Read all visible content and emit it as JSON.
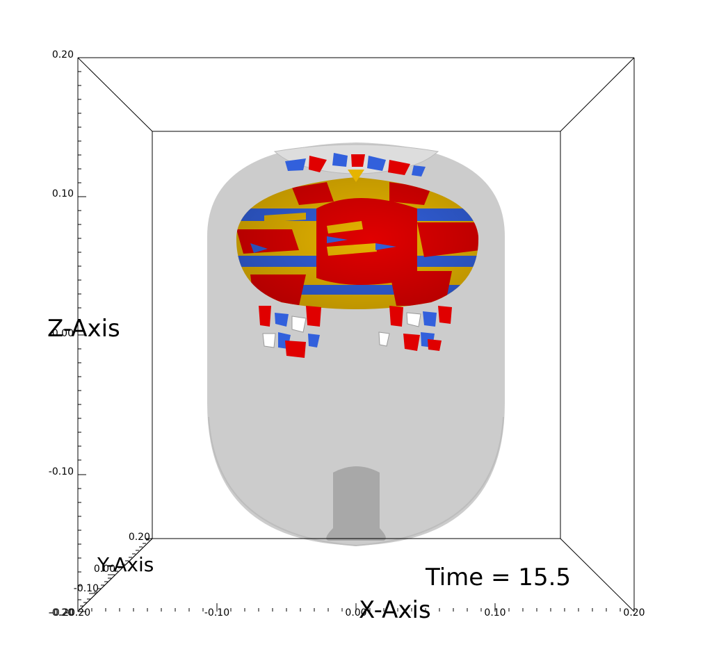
{
  "view": {
    "time_label": "Time = 15.5"
  },
  "axes": {
    "x": {
      "title": "X-Axis",
      "ticks": [
        "-0.20",
        "-0.10",
        "0.00",
        "0.10",
        "0.20"
      ]
    },
    "y": {
      "title": "Y-Axis",
      "ticks": [
        "0.20",
        "0.00",
        "-0.10",
        "-0.20"
      ]
    },
    "z": {
      "title": "Z-Axis",
      "ticks": [
        "0.20",
        "0.10",
        "0.00",
        "-0.10",
        "-0.20"
      ]
    }
  },
  "colors": {
    "background": "#ffffff",
    "container": "#cccccc",
    "inlet": "#a8a8a8",
    "surface_red": "#e00000",
    "surface_yellow": "#e6b400",
    "surface_blue": "#3260dc",
    "box_lines": "#000000"
  }
}
